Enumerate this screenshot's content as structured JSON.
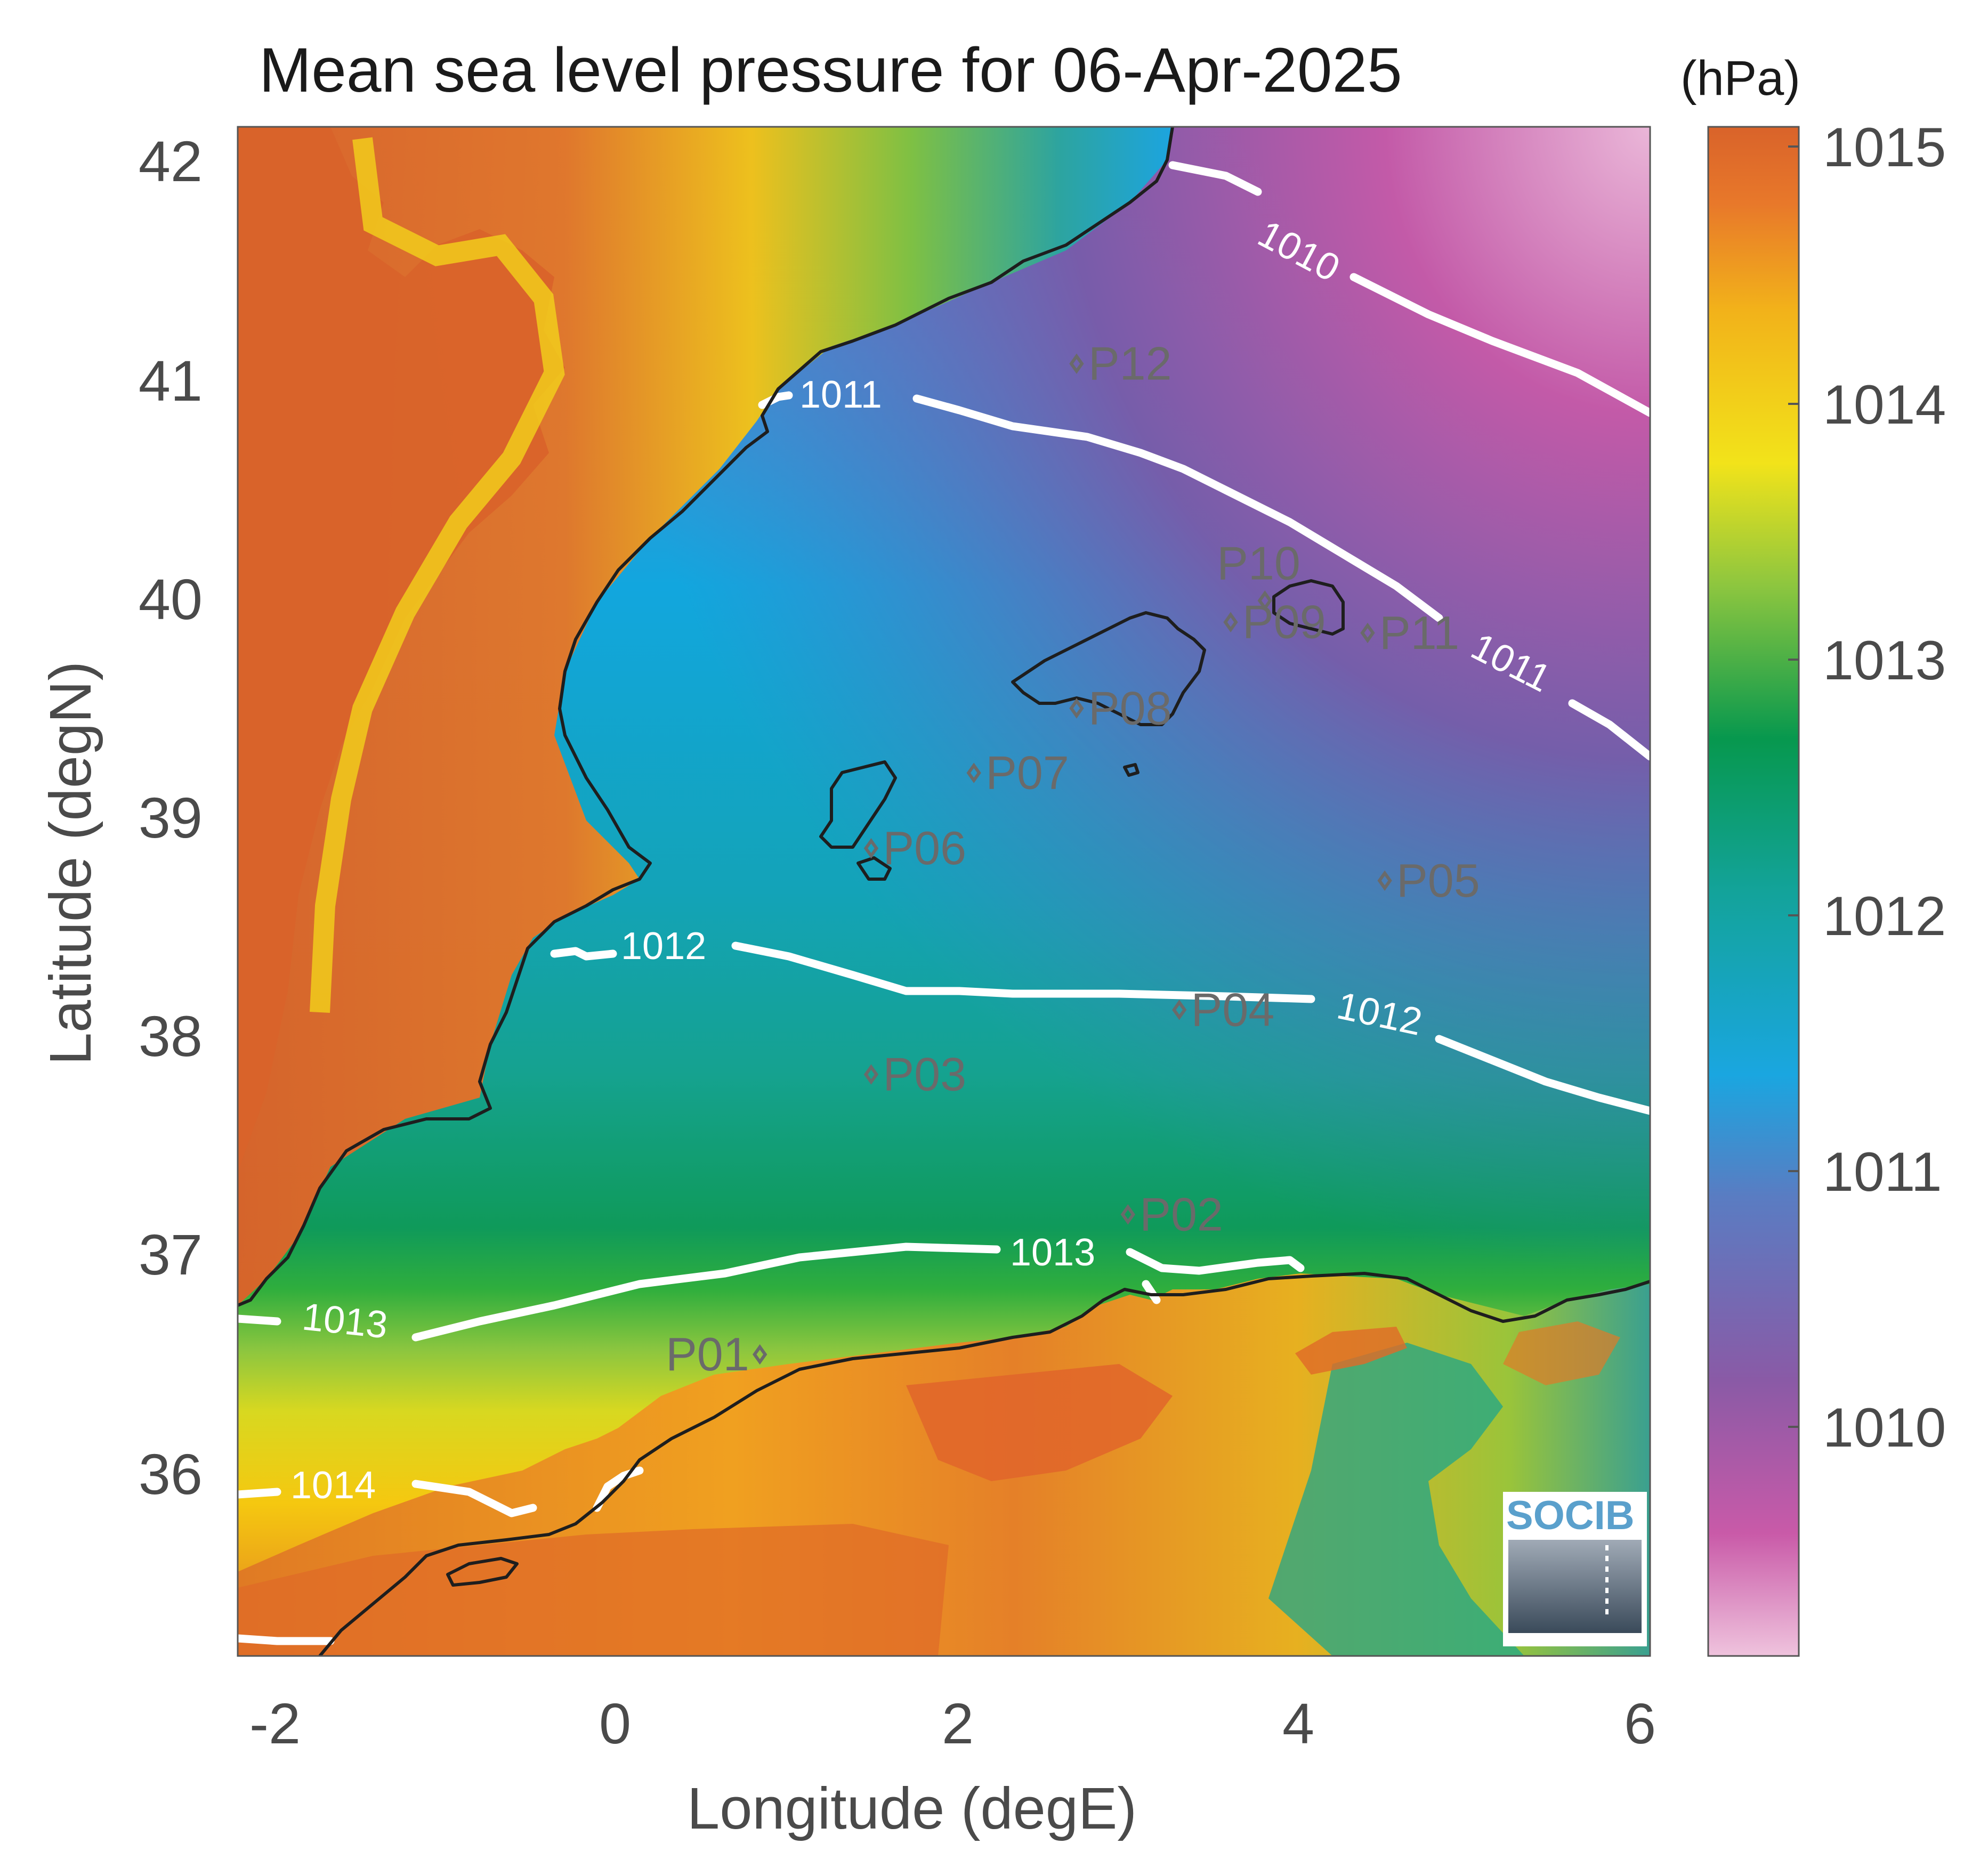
{
  "title": "Mean sea level pressure for 06-Apr-2025",
  "xlabel": "Longitude (degE)",
  "ylabel": "Latitude (degN)",
  "colorbar": {
    "unit": "(hPa)",
    "ticks": [
      "1015",
      "1014",
      "1013",
      "1012",
      "1011",
      "1010"
    ],
    "range": [
      1009.1,
      1015.1
    ],
    "colormap": "parula-like: pink (low) -> purple -> blue -> green -> yellow -> orange (high)"
  },
  "axes": {
    "xlim": [
      -2.2,
      6.05
    ],
    "ylim": [
      35.1,
      42.2
    ],
    "xticks": [
      "-2",
      "0",
      "2",
      "4",
      "6"
    ],
    "yticks": [
      "42",
      "41",
      "40",
      "39",
      "38",
      "37",
      "36"
    ]
  },
  "contours": [
    {
      "level": "1010",
      "label": "1010"
    },
    {
      "level": "1011",
      "label": "1011"
    },
    {
      "level": "1012",
      "label": "1012"
    },
    {
      "level": "1013",
      "label": "1013"
    },
    {
      "level": "1014",
      "label": "1014"
    }
  ],
  "stations": [
    {
      "name": "P01",
      "lon": 0.85,
      "lat": 36.5
    },
    {
      "name": "P02",
      "lon": 3.0,
      "lat": 37.15
    },
    {
      "name": "P03",
      "lon": 1.5,
      "lat": 37.8
    },
    {
      "name": "P04",
      "lon": 3.3,
      "lat": 38.1
    },
    {
      "name": "P05",
      "lon": 4.5,
      "lat": 38.7
    },
    {
      "name": "P06",
      "lon": 1.5,
      "lat": 38.85
    },
    {
      "name": "P07",
      "lon": 2.1,
      "lat": 39.2
    },
    {
      "name": "P08",
      "lon": 2.7,
      "lat": 39.5
    },
    {
      "name": "P09",
      "lon": 3.6,
      "lat": 39.9
    },
    {
      "name": "P10",
      "lon": 3.8,
      "lat": 40.0
    },
    {
      "name": "P11",
      "lon": 4.4,
      "lat": 39.85
    },
    {
      "name": "P12",
      "lon": 2.7,
      "lat": 41.1
    }
  ],
  "logo_text": "SOCIB",
  "colors": {
    "sea_blue": "#1aa6e0",
    "land_orange": "#d9632a",
    "contour": "#ffffff",
    "coastline": "#1e1e1e"
  }
}
